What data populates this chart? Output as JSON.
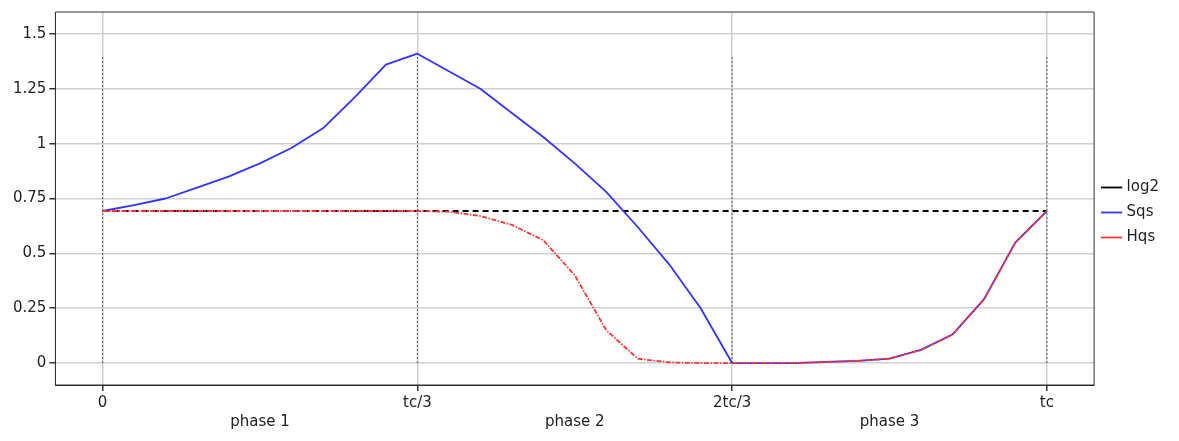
{
  "chart_data": {
    "type": "line",
    "categories": [
      "0",
      null,
      null,
      null,
      null,
      null,
      null,
      null,
      null,
      null,
      "tc/3",
      null,
      null,
      null,
      null,
      null,
      null,
      null,
      null,
      null,
      "2tc/3",
      null,
      null,
      null,
      null,
      null,
      null,
      null,
      null,
      null,
      "tc"
    ],
    "ylim": [
      -0.1,
      1.6
    ],
    "yticks": [
      0,
      0.25,
      0.5,
      0.75,
      1,
      1.25,
      1.5
    ],
    "grid": true,
    "legend": "right",
    "marker": "none",
    "annotations": [
      "phase 1",
      "phase 2",
      "phase 3"
    ],
    "series": [
      {
        "name": "log2",
        "color": "#000000",
        "line_style": "dashed",
        "values": [
          0.693,
          0.693,
          0.693,
          0.693,
          0.693,
          0.693,
          0.693,
          0.693,
          0.693,
          0.693,
          0.693,
          0.693,
          0.693,
          0.693,
          0.693,
          0.693,
          0.693,
          0.693,
          0.693,
          0.693,
          0.693,
          0.693,
          0.693,
          0.693,
          0.693,
          0.693,
          0.693,
          0.693,
          0.693,
          0.693,
          0.693
        ]
      },
      {
        "name": "Sqs",
        "color": "#3333ff",
        "line_style": "solid",
        "values": [
          0.693,
          0.72,
          0.75,
          0.8,
          0.85,
          0.91,
          0.98,
          1.07,
          1.21,
          1.36,
          1.41,
          1.33,
          1.25,
          1.14,
          1.03,
          0.91,
          0.78,
          0.62,
          0.45,
          0.25,
          0,
          0,
          0,
          0.005,
          0.01,
          0.02,
          0.06,
          0.13,
          0.29,
          0.55,
          0.693
        ]
      },
      {
        "name": "Hqs",
        "color": "#ff3333",
        "line_style": "dashdot",
        "values": [
          0.693,
          0.693,
          0.693,
          0.693,
          0.693,
          0.693,
          0.693,
          0.693,
          0.693,
          0.693,
          0.693,
          0.69,
          0.67,
          0.63,
          0.56,
          0.4,
          0.15,
          0.02,
          0.003,
          0,
          0,
          0,
          0,
          0.005,
          0.01,
          0.02,
          0.06,
          0.13,
          0.29,
          0.55,
          0.693
        ]
      },
      {
        "color": "#555555",
        "line_style": "dotted",
        "x": [
          "0",
          "0"
        ],
        "values": [
          0,
          1.4
        ]
      },
      {
        "color": "#555555",
        "line_style": "dotted",
        "x": [
          "tc/3",
          "tc/3"
        ],
        "values": [
          0,
          1.4
        ]
      },
      {
        "color": "#555555",
        "line_style": "dotted",
        "x": [
          "2tc/3",
          "2tc/3"
        ],
        "values": [
          0,
          1.4
        ]
      },
      {
        "color": "#555555",
        "line_style": "dotted",
        "x": [
          "tc",
          "tc"
        ],
        "values": [
          0,
          1.4
        ]
      }
    ]
  }
}
